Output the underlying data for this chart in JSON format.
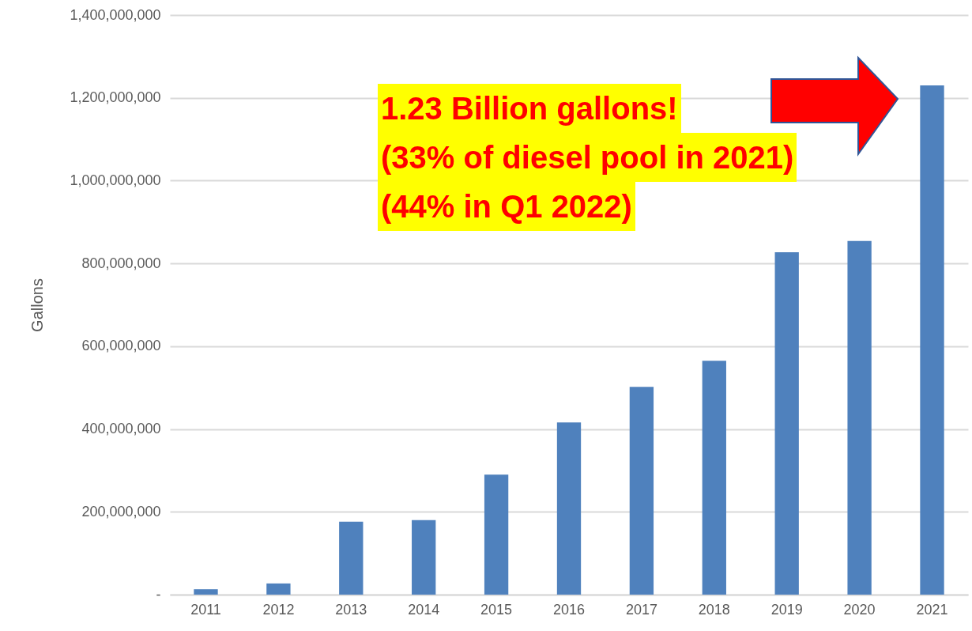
{
  "chart_data": {
    "type": "bar",
    "ylabel": "Gallons",
    "categories": [
      "2011",
      "2012",
      "2013",
      "2014",
      "2015",
      "2016",
      "2017",
      "2018",
      "2019",
      "2020",
      "2021"
    ],
    "values": [
      13000000,
      27000000,
      176000000,
      180000000,
      290000000,
      416000000,
      502000000,
      565000000,
      827000000,
      854000000,
      1230000000
    ],
    "color": "#4f81bd",
    "ylim": [
      0,
      1400000000
    ],
    "yticks": [
      {
        "value": 0,
        "label": "-"
      },
      {
        "value": 200000000,
        "label": "200,000,000"
      },
      {
        "value": 400000000,
        "label": "400,000,000"
      },
      {
        "value": 600000000,
        "label": "600,000,000"
      },
      {
        "value": 800000000,
        "label": "800,000,000"
      },
      {
        "value": 1000000000,
        "label": "1,000,000,000"
      },
      {
        "value": 1200000000,
        "label": "1,200,000,000"
      },
      {
        "value": 1400000000,
        "label": "1,400,000,000"
      }
    ],
    "grid": "y",
    "annotations": [
      "1.23 Billion gallons!",
      "(33% of diesel pool in 2021)",
      "(44% in Q1 2022)"
    ]
  }
}
